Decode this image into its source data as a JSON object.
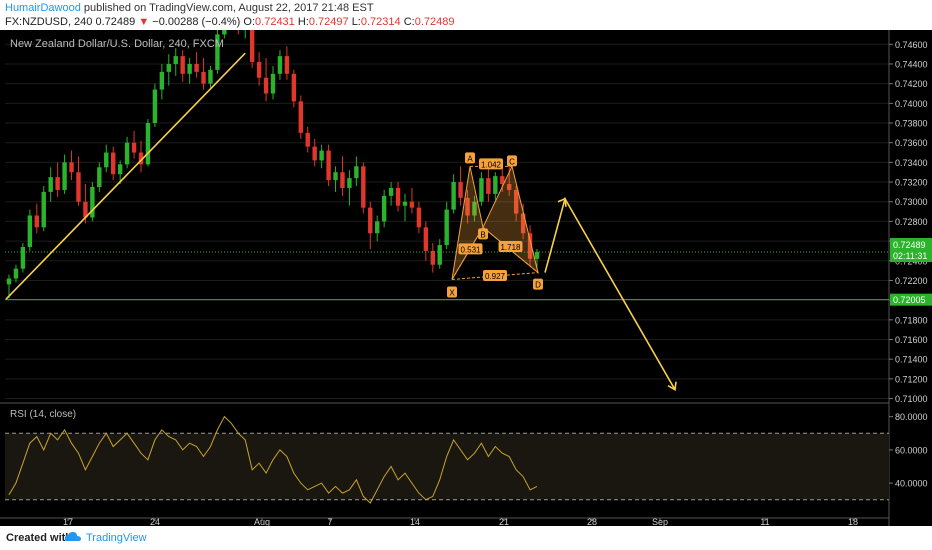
{
  "header": {
    "author": "HumairDawood",
    "published_text": "published on TradingView.com, August 22, 2017 21:48 EST",
    "symbol": "FX:NZDUSD, 240",
    "price": "0.72489",
    "down_arrow": "▼",
    "change": "−0.00288 (−0.4%)",
    "o_label": "O:",
    "o_val": "0.72431",
    "h_label": "H:",
    "h_val": "0.72497",
    "l_label": "L:",
    "l_val": "0.72314",
    "c_label": "C:",
    "c_val": "0.72489"
  },
  "footer": {
    "created_with": "Created with",
    "brand": "TradingView",
    "logo_icon": "tradingview-cloud-icon"
  },
  "chart_data": {
    "type": "candlestick",
    "title": "New Zealand Dollar/U.S. Dollar, 240, FXCM",
    "background": "#000000",
    "up_color": "#2bb32b",
    "down_color": "#e0362c",
    "ylim": [
      0.70975,
      0.74725
    ],
    "y_ticks": [
      "0.74600",
      "0.74400",
      "0.74200",
      "0.74000",
      "0.73800",
      "0.73600",
      "0.73400",
      "0.73200",
      "0.73000",
      "0.72800",
      "0.72600",
      "0.72400",
      "0.72200",
      "0.72000",
      "0.71800",
      "0.71600",
      "0.71400",
      "0.71200",
      "0.71000"
    ],
    "x_ticks": [
      "17",
      "24",
      "Aug",
      "7",
      "14",
      "21",
      "28",
      "Sep",
      "11",
      "18"
    ],
    "current_price_label": "0.72489",
    "countdown_label": "02:11:31",
    "support_label": "0.72005",
    "support_level": 0.72005,
    "current_price": 0.72489,
    "candles": [
      {
        "o": 0.7216,
        "h": 0.7226,
        "l": 0.7202,
        "c": 0.7222
      },
      {
        "o": 0.7222,
        "h": 0.7236,
        "l": 0.7218,
        "c": 0.7232
      },
      {
        "o": 0.7232,
        "h": 0.7258,
        "l": 0.7228,
        "c": 0.7254
      },
      {
        "o": 0.7254,
        "h": 0.7292,
        "l": 0.725,
        "c": 0.7286
      },
      {
        "o": 0.7286,
        "h": 0.7298,
        "l": 0.7268,
        "c": 0.7274
      },
      {
        "o": 0.7274,
        "h": 0.7316,
        "l": 0.727,
        "c": 0.731
      },
      {
        "o": 0.731,
        "h": 0.7335,
        "l": 0.73,
        "c": 0.7325
      },
      {
        "o": 0.7325,
        "h": 0.734,
        "l": 0.7305,
        "c": 0.7312
      },
      {
        "o": 0.7312,
        "h": 0.7348,
        "l": 0.7308,
        "c": 0.734
      },
      {
        "o": 0.734,
        "h": 0.7352,
        "l": 0.7322,
        "c": 0.733
      },
      {
        "o": 0.733,
        "h": 0.7346,
        "l": 0.7296,
        "c": 0.73
      },
      {
        "o": 0.73,
        "h": 0.7318,
        "l": 0.7278,
        "c": 0.7284
      },
      {
        "o": 0.7284,
        "h": 0.732,
        "l": 0.728,
        "c": 0.7315
      },
      {
        "o": 0.7315,
        "h": 0.734,
        "l": 0.731,
        "c": 0.7335
      },
      {
        "o": 0.7335,
        "h": 0.7358,
        "l": 0.733,
        "c": 0.735
      },
      {
        "o": 0.735,
        "h": 0.7356,
        "l": 0.7322,
        "c": 0.7328
      },
      {
        "o": 0.7328,
        "h": 0.7342,
        "l": 0.7318,
        "c": 0.7338
      },
      {
        "o": 0.7338,
        "h": 0.7366,
        "l": 0.7334,
        "c": 0.736
      },
      {
        "o": 0.736,
        "h": 0.7372,
        "l": 0.7344,
        "c": 0.735
      },
      {
        "o": 0.735,
        "h": 0.7362,
        "l": 0.733,
        "c": 0.7338
      },
      {
        "o": 0.7338,
        "h": 0.7384,
        "l": 0.7336,
        "c": 0.738
      },
      {
        "o": 0.738,
        "h": 0.742,
        "l": 0.7376,
        "c": 0.7414
      },
      {
        "o": 0.7414,
        "h": 0.744,
        "l": 0.7404,
        "c": 0.7432
      },
      {
        "o": 0.7432,
        "h": 0.745,
        "l": 0.7418,
        "c": 0.744
      },
      {
        "o": 0.744,
        "h": 0.7456,
        "l": 0.7428,
        "c": 0.7448
      },
      {
        "o": 0.7448,
        "h": 0.7454,
        "l": 0.7422,
        "c": 0.743
      },
      {
        "o": 0.743,
        "h": 0.7446,
        "l": 0.742,
        "c": 0.744
      },
      {
        "o": 0.744,
        "h": 0.7452,
        "l": 0.7426,
        "c": 0.7432
      },
      {
        "o": 0.7432,
        "h": 0.7446,
        "l": 0.7414,
        "c": 0.742
      },
      {
        "o": 0.742,
        "h": 0.7438,
        "l": 0.7416,
        "c": 0.7434
      },
      {
        "o": 0.7434,
        "h": 0.7476,
        "l": 0.743,
        "c": 0.747
      },
      {
        "o": 0.747,
        "h": 0.75,
        "l": 0.7466,
        "c": 0.749
      },
      {
        "o": 0.749,
        "h": 0.7505,
        "l": 0.7476,
        "c": 0.7485
      },
      {
        "o": 0.7485,
        "h": 0.75,
        "l": 0.747,
        "c": 0.7478
      },
      {
        "o": 0.7478,
        "h": 0.7496,
        "l": 0.7466,
        "c": 0.7488
      },
      {
        "o": 0.7488,
        "h": 0.7494,
        "l": 0.7436,
        "c": 0.7442
      },
      {
        "o": 0.7442,
        "h": 0.7452,
        "l": 0.7418,
        "c": 0.7426
      },
      {
        "o": 0.7426,
        "h": 0.7446,
        "l": 0.7402,
        "c": 0.741
      },
      {
        "o": 0.741,
        "h": 0.7438,
        "l": 0.7404,
        "c": 0.743
      },
      {
        "o": 0.743,
        "h": 0.7454,
        "l": 0.7424,
        "c": 0.7448
      },
      {
        "o": 0.7448,
        "h": 0.7458,
        "l": 0.7424,
        "c": 0.743
      },
      {
        "o": 0.743,
        "h": 0.7434,
        "l": 0.7396,
        "c": 0.7402
      },
      {
        "o": 0.7402,
        "h": 0.7408,
        "l": 0.7364,
        "c": 0.737
      },
      {
        "o": 0.737,
        "h": 0.7376,
        "l": 0.735,
        "c": 0.7356
      },
      {
        "o": 0.7356,
        "h": 0.7364,
        "l": 0.7336,
        "c": 0.7342
      },
      {
        "o": 0.7342,
        "h": 0.7358,
        "l": 0.7334,
        "c": 0.7352
      },
      {
        "o": 0.7352,
        "h": 0.7358,
        "l": 0.7316,
        "c": 0.7322
      },
      {
        "o": 0.7322,
        "h": 0.7336,
        "l": 0.731,
        "c": 0.733
      },
      {
        "o": 0.733,
        "h": 0.7346,
        "l": 0.7306,
        "c": 0.7314
      },
      {
        "o": 0.7314,
        "h": 0.7332,
        "l": 0.7296,
        "c": 0.7324
      },
      {
        "o": 0.7324,
        "h": 0.7346,
        "l": 0.7316,
        "c": 0.7336
      },
      {
        "o": 0.7336,
        "h": 0.734,
        "l": 0.7288,
        "c": 0.7294
      },
      {
        "o": 0.7294,
        "h": 0.73,
        "l": 0.7252,
        "c": 0.7268
      },
      {
        "o": 0.7268,
        "h": 0.7286,
        "l": 0.726,
        "c": 0.728
      },
      {
        "o": 0.728,
        "h": 0.7312,
        "l": 0.7274,
        "c": 0.7306
      },
      {
        "o": 0.7306,
        "h": 0.732,
        "l": 0.7296,
        "c": 0.7314
      },
      {
        "o": 0.7314,
        "h": 0.732,
        "l": 0.729,
        "c": 0.7296
      },
      {
        "o": 0.7296,
        "h": 0.7308,
        "l": 0.728,
        "c": 0.73
      },
      {
        "o": 0.73,
        "h": 0.7314,
        "l": 0.7288,
        "c": 0.7294
      },
      {
        "o": 0.7294,
        "h": 0.73,
        "l": 0.7268,
        "c": 0.7274
      },
      {
        "o": 0.7274,
        "h": 0.728,
        "l": 0.724,
        "c": 0.725
      },
      {
        "o": 0.725,
        "h": 0.7258,
        "l": 0.7228,
        "c": 0.7236
      },
      {
        "o": 0.7236,
        "h": 0.7262,
        "l": 0.7232,
        "c": 0.7256
      },
      {
        "o": 0.7256,
        "h": 0.73,
        "l": 0.7252,
        "c": 0.7292
      },
      {
        "o": 0.7292,
        "h": 0.7328,
        "l": 0.7288,
        "c": 0.732
      },
      {
        "o": 0.732,
        "h": 0.7336,
        "l": 0.7296,
        "c": 0.7304
      },
      {
        "o": 0.7304,
        "h": 0.7312,
        "l": 0.7278,
        "c": 0.7286
      },
      {
        "o": 0.7286,
        "h": 0.7306,
        "l": 0.728,
        "c": 0.73
      },
      {
        "o": 0.73,
        "h": 0.733,
        "l": 0.7296,
        "c": 0.7324
      },
      {
        "o": 0.7324,
        "h": 0.7334,
        "l": 0.73,
        "c": 0.7308
      },
      {
        "o": 0.7308,
        "h": 0.733,
        "l": 0.7302,
        "c": 0.7326
      },
      {
        "o": 0.7326,
        "h": 0.7336,
        "l": 0.731,
        "c": 0.7318
      },
      {
        "o": 0.7318,
        "h": 0.7336,
        "l": 0.7306,
        "c": 0.7312
      },
      {
        "o": 0.7312,
        "h": 0.7316,
        "l": 0.728,
        "c": 0.7288
      },
      {
        "o": 0.7288,
        "h": 0.7298,
        "l": 0.7262,
        "c": 0.7268
      },
      {
        "o": 0.7268,
        "h": 0.7276,
        "l": 0.7234,
        "c": 0.7242
      },
      {
        "o": 0.7242,
        "h": 0.7252,
        "l": 0.7231,
        "c": 0.7249
      }
    ],
    "pattern": {
      "points": {
        "X": 0.7221,
        "A": 0.7336,
        "B": 0.7274,
        "C": 0.7336,
        "D": 0.7228
      },
      "ratio_labels": [
        "1.042",
        "0.531",
        "1.718",
        "0.927"
      ]
    },
    "trendline": {
      "from": 0.7201,
      "to": 0.7451
    },
    "projection": {
      "from_price": 0.7228,
      "peak_price": 0.7303,
      "target_price": 0.7109
    },
    "rsi": {
      "label": "RSI (14, close)",
      "ylim": [
        19,
        87
      ],
      "y_ticks": [
        "80.0000",
        "60.0000",
        "40.0000"
      ],
      "upper_band": 70,
      "lower_band": 30,
      "values": [
        33,
        40,
        52,
        64,
        68,
        60,
        70,
        66,
        72,
        64,
        58,
        48,
        56,
        64,
        70,
        62,
        66,
        70,
        64,
        58,
        54,
        66,
        72,
        68,
        66,
        60,
        64,
        62,
        56,
        62,
        72,
        80,
        76,
        70,
        66,
        48,
        52,
        46,
        54,
        60,
        56,
        46,
        40,
        36,
        38,
        40,
        34,
        38,
        34,
        36,
        42,
        32,
        28,
        36,
        44,
        50,
        42,
        46,
        40,
        34,
        30,
        32,
        42,
        56,
        66,
        60,
        54,
        58,
        64,
        56,
        62,
        58,
        56,
        48,
        44,
        36,
        38
      ]
    }
  }
}
